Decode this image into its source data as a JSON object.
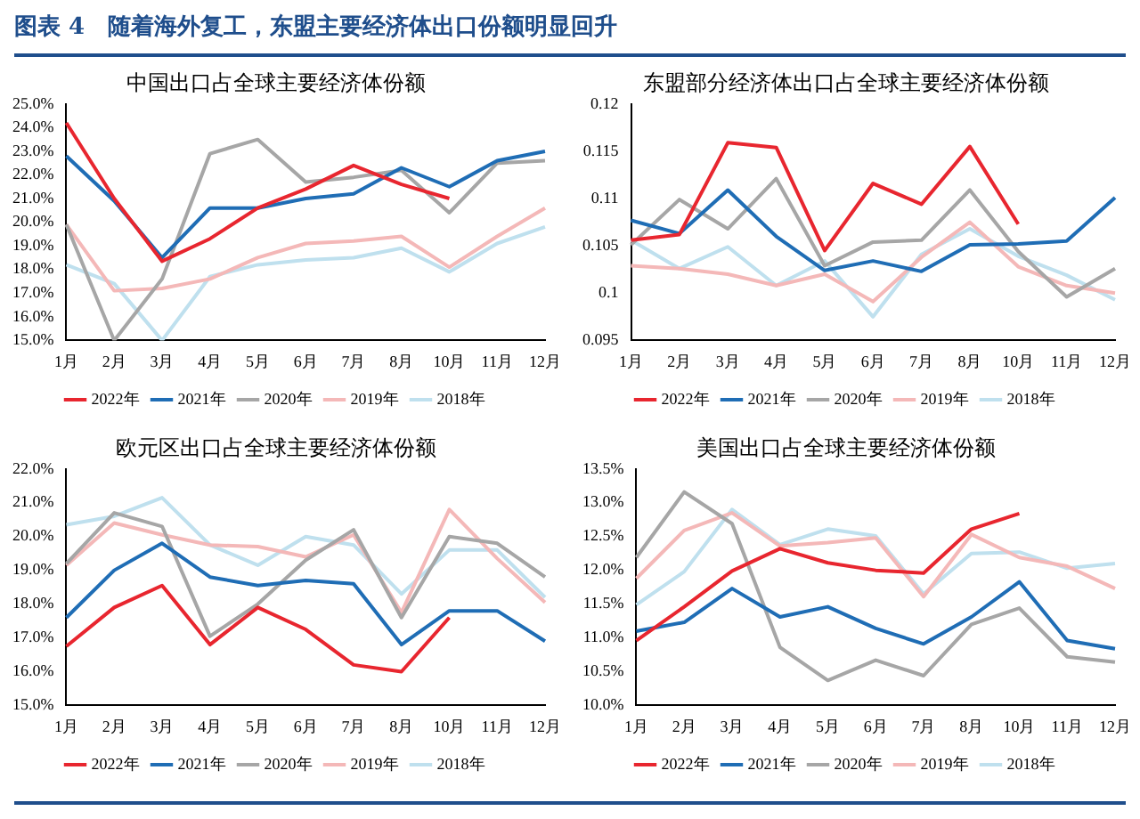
{
  "chart_data": [
    {
      "type": "line",
      "title": "中国出口占全球主要经济体份额",
      "annotations": [
        "图表 4　随着海外复工，东盟主要经济体出口份额明显回升"
      ],
      "categories": [
        "1月",
        "2月",
        "3月",
        "4月",
        "5月",
        "6月",
        "7月",
        "8月",
        "10月",
        "11月",
        "12月"
      ],
      "ylim": [
        15,
        25
      ],
      "yticks": [
        {
          "value": 15,
          "label": "15.0%"
        },
        {
          "value": 16,
          "label": "16.0%"
        },
        {
          "value": 17,
          "label": "17.0%"
        },
        {
          "value": 18,
          "label": "18.0%"
        },
        {
          "value": 19,
          "label": "19.0%"
        },
        {
          "value": 20,
          "label": "20.0%"
        },
        {
          "value": 21,
          "label": "21.0%"
        },
        {
          "value": 22,
          "label": "22.0%"
        },
        {
          "value": 23,
          "label": "23.0%"
        },
        {
          "value": 24,
          "label": "24.0%"
        },
        {
          "value": 25,
          "label": "25.0%"
        }
      ],
      "grid": false,
      "legend": "bottom",
      "marker": "none",
      "series": [
        {
          "name": "2022年",
          "color": "#e8262f",
          "values": [
            24.2,
            21.0,
            18.35,
            19.3,
            20.6,
            21.4,
            22.4,
            21.6,
            21.0,
            null,
            null
          ]
        },
        {
          "name": "2021年",
          "color": "#1f6db5",
          "values": [
            22.8,
            20.9,
            18.5,
            20.6,
            20.6,
            21.0,
            21.2,
            22.3,
            21.5,
            22.6,
            23.0
          ]
        },
        {
          "name": "2020年",
          "color": "#a6a6a6",
          "values": [
            19.9,
            15.0,
            17.6,
            22.9,
            23.5,
            21.7,
            21.9,
            22.2,
            20.4,
            22.5,
            22.6
          ]
        },
        {
          "name": "2019年",
          "color": "#f4b8b8",
          "values": [
            19.9,
            17.1,
            17.2,
            17.6,
            18.5,
            19.1,
            19.2,
            19.4,
            18.1,
            19.4,
            20.6
          ]
        },
        {
          "name": "2018年",
          "color": "#bfe0ee",
          "values": [
            18.2,
            17.4,
            15.0,
            17.7,
            18.2,
            18.4,
            18.5,
            18.9,
            17.9,
            19.1,
            19.8
          ]
        }
      ]
    },
    {
      "type": "line",
      "title": "东盟部分经济体出口占全球主要经济体份额",
      "categories": [
        "1月",
        "2月",
        "3月",
        "4月",
        "5月",
        "6月",
        "7月",
        "8月",
        "10月",
        "11月",
        "12月"
      ],
      "ylim": [
        0.095,
        0.12
      ],
      "yticks": [
        0.095,
        0.1,
        0.105,
        0.11,
        0.115,
        0.12
      ],
      "grid": false,
      "legend": "bottom",
      "marker": "none",
      "series": [
        {
          "name": "2022年",
          "color": "#e8262f",
          "values": [
            0.1056,
            0.1062,
            0.1159,
            0.1154,
            0.1045,
            0.1116,
            0.1094,
            0.1155,
            0.1073,
            null,
            null
          ]
        },
        {
          "name": "2021年",
          "color": "#1f6db5",
          "values": [
            0.1077,
            0.1063,
            0.1109,
            0.106,
            0.1024,
            0.1034,
            0.1023,
            0.1051,
            0.1052,
            0.1055,
            0.1101
          ]
        },
        {
          "name": "2020年",
          "color": "#a6a6a6",
          "values": [
            0.1051,
            0.1099,
            0.1068,
            0.1121,
            0.1029,
            0.1054,
            0.1056,
            0.1109,
            0.1044,
            0.0996,
            0.1026
          ]
        },
        {
          "name": "2019年",
          "color": "#f4b8b8",
          "values": [
            0.1029,
            0.1026,
            0.102,
            0.1008,
            0.102,
            0.0991,
            0.1038,
            0.1075,
            0.1028,
            0.1008,
            0.1
          ]
        },
        {
          "name": "2018年",
          "color": "#bfe0ee",
          "values": [
            0.1056,
            0.1026,
            0.1049,
            0.1008,
            0.1034,
            0.0975,
            0.1041,
            0.1068,
            0.1039,
            0.1019,
            0.0993
          ]
        }
      ]
    },
    {
      "type": "line",
      "title": "欧元区出口占全球主要经济体份额",
      "categories": [
        "1月",
        "2月",
        "3月",
        "4月",
        "5月",
        "6月",
        "7月",
        "8月",
        "10月",
        "11月",
        "12月"
      ],
      "ylim": [
        15,
        22
      ],
      "yticks": [
        {
          "value": 15,
          "label": "15.0%"
        },
        {
          "value": 16,
          "label": "16.0%"
        },
        {
          "value": 17,
          "label": "17.0%"
        },
        {
          "value": 18,
          "label": "18.0%"
        },
        {
          "value": 19,
          "label": "19.0%"
        },
        {
          "value": 20,
          "label": "20.0%"
        },
        {
          "value": 21,
          "label": "21.0%"
        },
        {
          "value": 22,
          "label": "22.0%"
        }
      ],
      "grid": false,
      "legend": "bottom",
      "marker": "none",
      "series": [
        {
          "name": "2022年",
          "color": "#e8262f",
          "values": [
            16.75,
            17.9,
            18.55,
            16.8,
            17.9,
            17.25,
            16.2,
            16.0,
            17.6,
            null,
            null
          ]
        },
        {
          "name": "2021年",
          "color": "#1f6db5",
          "values": [
            17.6,
            19.0,
            19.8,
            18.8,
            18.55,
            18.7,
            18.6,
            16.8,
            17.8,
            17.8,
            16.9
          ]
        },
        {
          "name": "2020年",
          "color": "#a6a6a6",
          "values": [
            19.2,
            20.7,
            20.3,
            17.05,
            18.0,
            19.3,
            20.2,
            17.6,
            20.0,
            19.8,
            18.8
          ]
        },
        {
          "name": "2019年",
          "color": "#f4b8b8",
          "values": [
            19.15,
            20.4,
            20.05,
            19.75,
            19.7,
            19.4,
            20.05,
            17.75,
            20.8,
            19.35,
            18.05
          ]
        },
        {
          "name": "2018年",
          "color": "#bfe0ee",
          "values": [
            20.35,
            20.6,
            21.15,
            19.75,
            19.15,
            20.0,
            19.75,
            18.3,
            19.6,
            19.6,
            18.2
          ]
        }
      ]
    },
    {
      "type": "line",
      "title": "美国出口占全球主要经济体份额",
      "categories": [
        "1月",
        "2月",
        "3月",
        "4月",
        "5月",
        "6月",
        "7月",
        "8月",
        "10月",
        "11月",
        "12月"
      ],
      "ylim": [
        10,
        13.5
      ],
      "yticks": [
        {
          "value": 10,
          "label": "10.0%"
        },
        {
          "value": 10.5,
          "label": "10.5%"
        },
        {
          "value": 11,
          "label": "11.0%"
        },
        {
          "value": 11.5,
          "label": "11.5%"
        },
        {
          "value": 12,
          "label": "12.0%"
        },
        {
          "value": 12.5,
          "label": "12.5%"
        },
        {
          "value": 13,
          "label": "13.0%"
        },
        {
          "value": 13.5,
          "label": "13.5%"
        }
      ],
      "grid": false,
      "legend": "bottom",
      "marker": "none",
      "series": [
        {
          "name": "2022年",
          "color": "#e8262f",
          "values": [
            10.96,
            11.46,
            11.99,
            12.32,
            12.11,
            12.0,
            11.96,
            12.61,
            12.84,
            null,
            null
          ]
        },
        {
          "name": "2021年",
          "color": "#1f6db5",
          "values": [
            11.1,
            11.23,
            11.73,
            11.31,
            11.46,
            11.14,
            10.91,
            11.31,
            11.83,
            10.96,
            10.84
          ]
        },
        {
          "name": "2020年",
          "color": "#a6a6a6",
          "values": [
            12.19,
            13.16,
            12.69,
            10.86,
            10.37,
            10.67,
            10.44,
            11.2,
            11.44,
            10.72,
            10.64
          ]
        },
        {
          "name": "2019年",
          "color": "#f4b8b8",
          "values": [
            11.88,
            12.59,
            12.85,
            12.36,
            12.41,
            12.48,
            11.61,
            12.53,
            12.19,
            12.06,
            11.73
          ]
        },
        {
          "name": "2018年",
          "color": "#bfe0ee",
          "values": [
            11.49,
            11.98,
            12.9,
            12.38,
            12.61,
            12.51,
            11.65,
            12.25,
            12.27,
            12.03,
            12.1
          ]
        }
      ]
    }
  ]
}
